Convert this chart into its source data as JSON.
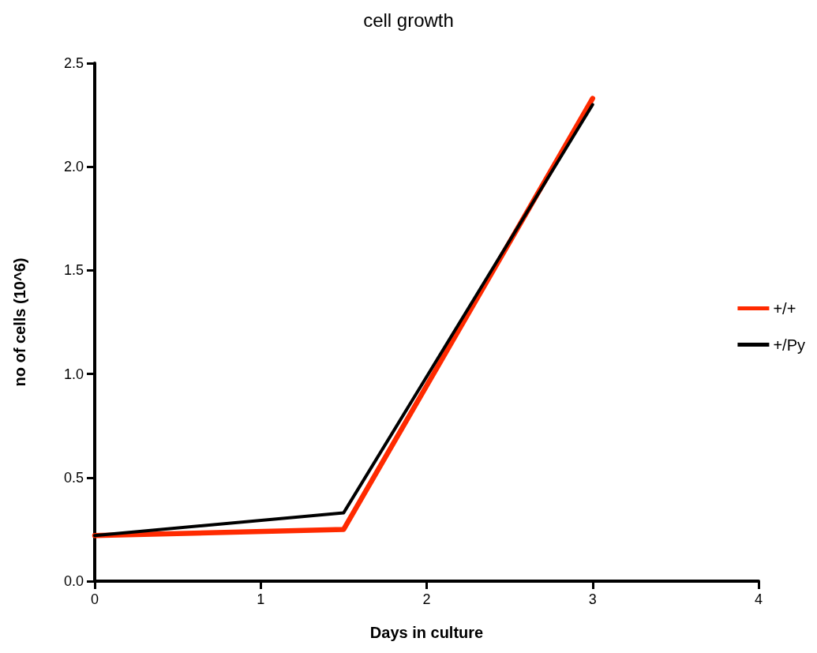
{
  "chart_data": {
    "type": "line",
    "title": "cell growth",
    "xlabel": "Days in culture",
    "ylabel": "no of cells (10^6)",
    "x": [
      0,
      1.5,
      3
    ],
    "series": [
      {
        "name": "+/+",
        "color": "#ff2a00",
        "values": [
          0.22,
          0.25,
          2.33
        ]
      },
      {
        "name": "+/Py",
        "color": "#000000",
        "values": [
          0.22,
          0.33,
          2.3
        ]
      }
    ],
    "xlim": [
      0,
      4
    ],
    "xticks": [
      0,
      1,
      2,
      3,
      4
    ],
    "ylim": [
      0,
      2.5
    ],
    "yticks": [
      {
        "value": 0,
        "label": "0.0"
      },
      0.5,
      {
        "value": 1,
        "label": "1.0"
      },
      1.5,
      {
        "value": 2,
        "label": "2.0"
      },
      2.5
    ],
    "grid": false,
    "legend": "right",
    "marker": "none",
    "line_style": "solid"
  }
}
